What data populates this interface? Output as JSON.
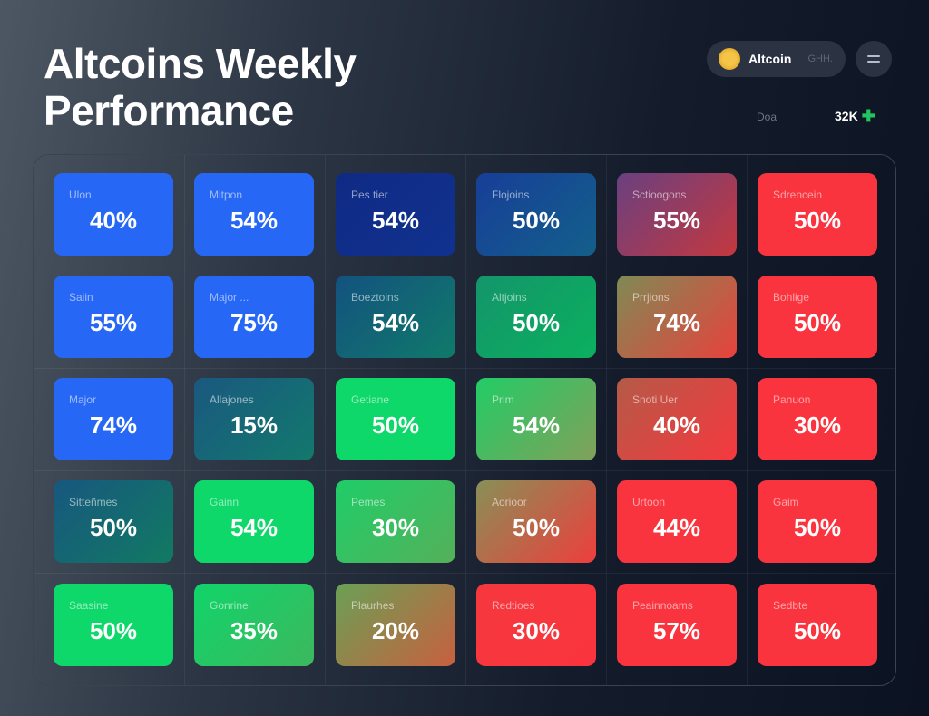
{
  "header": {
    "title_line1": "Altcoins Weekly",
    "title_line2": "Performance"
  },
  "coin_selector": {
    "name": "Altcoin",
    "sub": "GHH."
  },
  "stat": {
    "label": "Doa",
    "value": "32K",
    "icon": "plus-icon",
    "icon_color": "#22c55e"
  },
  "chart_data": {
    "type": "heatmap",
    "rows": [
      [
        {
          "label": "Ulon",
          "value": "40%",
          "from": "#2668f5",
          "to": "#2668f5"
        },
        {
          "label": "Mitpon",
          "value": "54%",
          "from": "#2668f5",
          "to": "#2668f5"
        },
        {
          "label": "Pes tier",
          "value": "54%",
          "from": "#0f2a85",
          "to": "#10328f"
        },
        {
          "label": "Flojoins",
          "value": "50%",
          "from": "#173e98",
          "to": "#135f8a"
        },
        {
          "label": "Sctioogons",
          "value": "55%",
          "from": "#6a4080",
          "to": "#c4383f"
        },
        {
          "label": "Sdrencein",
          "value": "50%",
          "from": "#fa343e",
          "to": "#fa343e"
        }
      ],
      [
        {
          "label": "Saiin",
          "value": "55%",
          "from": "#2668f5",
          "to": "#2668f5"
        },
        {
          "label": "Major ...",
          "value": "75%",
          "from": "#2668f5",
          "to": "#2668f5"
        },
        {
          "label": "Boeztoins",
          "value": "54%",
          "from": "#13527f",
          "to": "#107a6a"
        },
        {
          "label": "Altjoins",
          "value": "50%",
          "from": "#14956b",
          "to": "#0bb05e"
        },
        {
          "label": "Prrjions",
          "value": "74%",
          "from": "#7f8a55",
          "to": "#e8423c"
        },
        {
          "label": "Bohlige",
          "value": "50%",
          "from": "#fa343e",
          "to": "#fa343e"
        }
      ],
      [
        {
          "label": "Major",
          "value": "74%",
          "from": "#2668f5",
          "to": "#2668f5"
        },
        {
          "label": "Allajones",
          "value": "15%",
          "from": "#1a5880",
          "to": "#12796c"
        },
        {
          "label": "Getiane",
          "value": "50%",
          "from": "#0ed86a",
          "to": "#0ed86a"
        },
        {
          "label": "Prim",
          "value": "54%",
          "from": "#22cc66",
          "to": "#82a05a"
        },
        {
          "label": "Snoti Uer",
          "value": "40%",
          "from": "#b45a48",
          "to": "#f6383e"
        },
        {
          "label": "Panuon",
          "value": "30%",
          "from": "#fa343e",
          "to": "#fa343e"
        }
      ],
      [
        {
          "label": "Sitteñmes",
          "value": "50%",
          "from": "#17577f",
          "to": "#117a62"
        },
        {
          "label": "Gainn",
          "value": "54%",
          "from": "#0ed86a",
          "to": "#0ed86a"
        },
        {
          "label": "Pemes",
          "value": "30%",
          "from": "#1fcd68",
          "to": "#55b05a"
        },
        {
          "label": "Aorioor",
          "value": "50%",
          "from": "#889057",
          "to": "#ee3e3c"
        },
        {
          "label": "Urtoon",
          "value": "44%",
          "from": "#fa343e",
          "to": "#fa343e"
        },
        {
          "label": "Gaim",
          "value": "50%",
          "from": "#fa343e",
          "to": "#fa343e"
        }
      ],
      [
        {
          "label": "Saasine",
          "value": "50%",
          "from": "#0ed86a",
          "to": "#0ed86a"
        },
        {
          "label": "Gonrine",
          "value": "35%",
          "from": "#10d46a",
          "to": "#3db85e"
        },
        {
          "label": "Plaurhes",
          "value": "20%",
          "from": "#6aa055",
          "to": "#c8603f"
        },
        {
          "label": "Redtioes",
          "value": "30%",
          "from": "#f6383e",
          "to": "#fa343e"
        },
        {
          "label": "Peainnoams",
          "value": "57%",
          "from": "#fa343e",
          "to": "#fa343e"
        },
        {
          "label": "Sedbte",
          "value": "50%",
          "from": "#fa343e",
          "to": "#fa343e"
        }
      ]
    ]
  }
}
